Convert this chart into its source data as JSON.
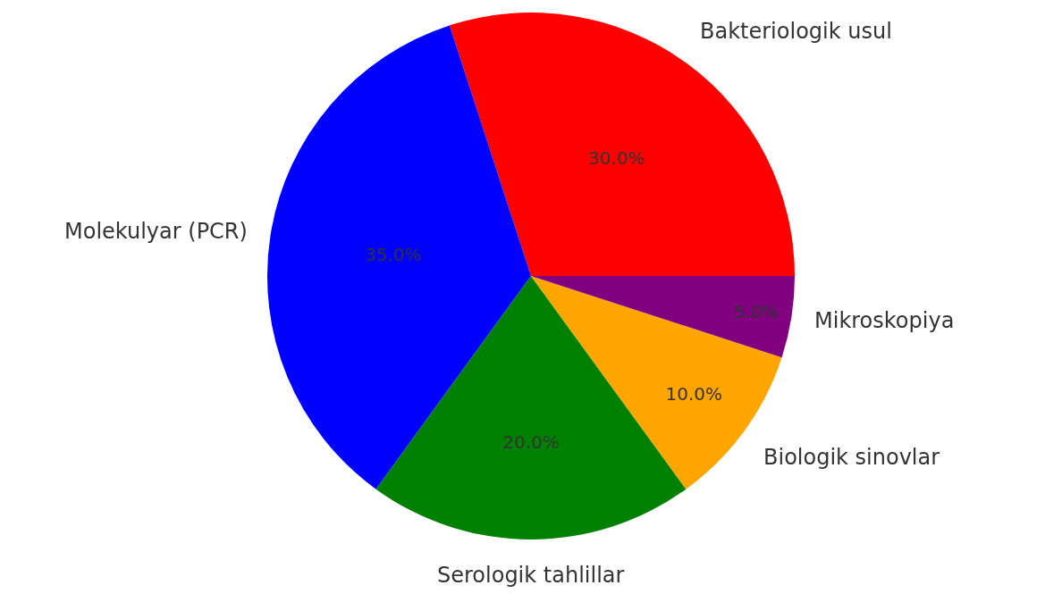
{
  "chart_data": {
    "type": "pie",
    "categories": [
      "Bakteriologik usul",
      "Molekulyar (PCR)",
      "Serologik tahlillar",
      "Biologik sinovlar",
      "Mikroskopiya"
    ],
    "values": [
      30,
      35,
      20,
      10,
      5
    ],
    "value_labels": [
      "30.0%",
      "35.0%",
      "20.0%",
      "10.0%",
      "5.0%"
    ],
    "colors": [
      "#ff0000",
      "#0000ff",
      "#008000",
      "#ffa500",
      "#800080"
    ],
    "legend": false
  }
}
